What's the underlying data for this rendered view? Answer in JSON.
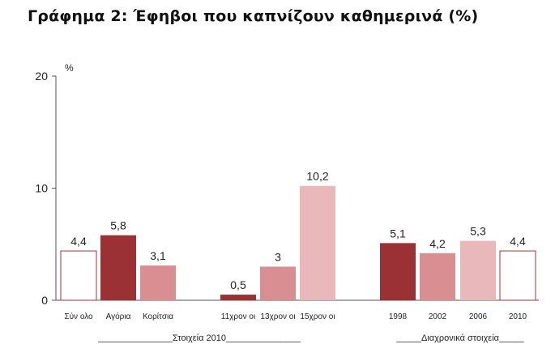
{
  "title": "Γράφημα 2: Έφηβοι που καπνίζουν καθημερινά (%)",
  "chart_data": {
    "type": "bar",
    "y_unit": "%",
    "ylim": [
      0,
      20
    ],
    "yticks": [
      "0",
      "10",
      "20"
    ],
    "grid": false,
    "bars": [
      {
        "category": "Σύν ολο",
        "value": 4.4,
        "label": "4,4",
        "color": "#ffffff",
        "stroke": "#a5323b"
      },
      {
        "category": "Αγόρια",
        "value": 5.8,
        "label": "5,8",
        "color": "#9b3035"
      },
      {
        "category": "Κορίτσια",
        "value": 3.1,
        "label": "3,1",
        "color": "#d98f92"
      },
      {
        "category": "11χρον οι",
        "value": 0.5,
        "label": "0,5",
        "color": "#9b3035"
      },
      {
        "category": "13χρον οι",
        "value": 3,
        "label": "3",
        "color": "#d98f92"
      },
      {
        "category": "15χρον οι",
        "value": 10.2,
        "label": "10,2",
        "color": "#e8b8ba"
      },
      {
        "category": "1998",
        "value": 5.1,
        "label": "5,1",
        "color": "#9b3035"
      },
      {
        "category": "2002",
        "value": 4.2,
        "label": "4,2",
        "color": "#d98f92"
      },
      {
        "category": "2006",
        "value": 5.3,
        "label": "5,3",
        "color": "#e8b8ba"
      },
      {
        "category": "2010",
        "value": 4.4,
        "label": "4,4",
        "color": "#ffffff",
        "stroke": "#a5323b"
      }
    ],
    "group_labels": [
      "_______________Στοιχεία 2010_______________",
      "_____Διαχρονικά στοιχεία_____"
    ]
  }
}
